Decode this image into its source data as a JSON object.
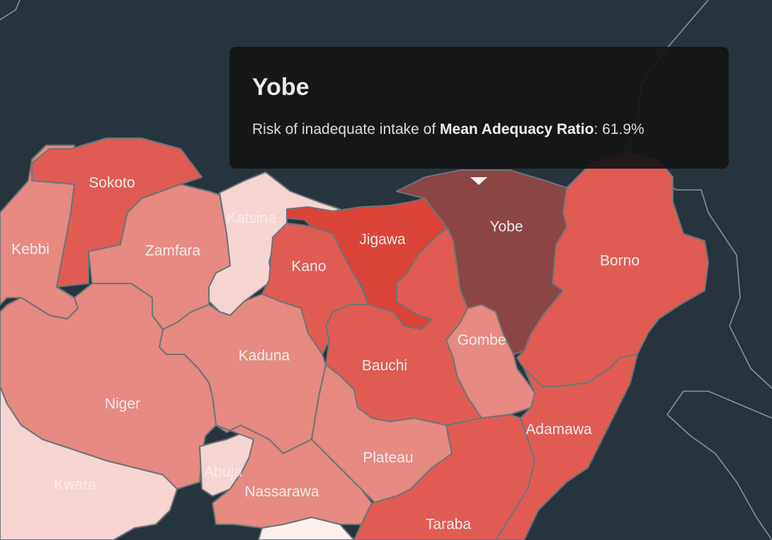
{
  "tooltip": {
    "title": "Yobe",
    "prefix": "Risk of inadequate intake of ",
    "metric": "Mean Adequacy Ratio",
    "separator": ": ",
    "value": "61.9%"
  },
  "colors": {
    "background": "#26353d",
    "scale_lightest": "#fdf0ef",
    "scale_light": "#f5d4d2",
    "scale_mid": "#e68a82",
    "scale_high": "#e05c52",
    "scale_higher": "#dc4437",
    "selected": "#8b4545"
  },
  "states": {
    "sokoto": "Sokoto",
    "kebbi": "Kebbi",
    "zamfara": "Zamfara",
    "katsina": "Katsina",
    "jigawa": "Jigawa",
    "kano": "Kano",
    "yobe": "Yobe",
    "borno": "Borno",
    "gombe": "Gombe",
    "bauchi": "Bauchi",
    "kaduna": "Kaduna",
    "niger": "Niger",
    "adamawa": "Adamawa",
    "plateau": "Plateau",
    "abuja": "Abuja",
    "nassarawa": "Nassarawa",
    "kwara": "Kwara",
    "taraba": "Taraba"
  }
}
